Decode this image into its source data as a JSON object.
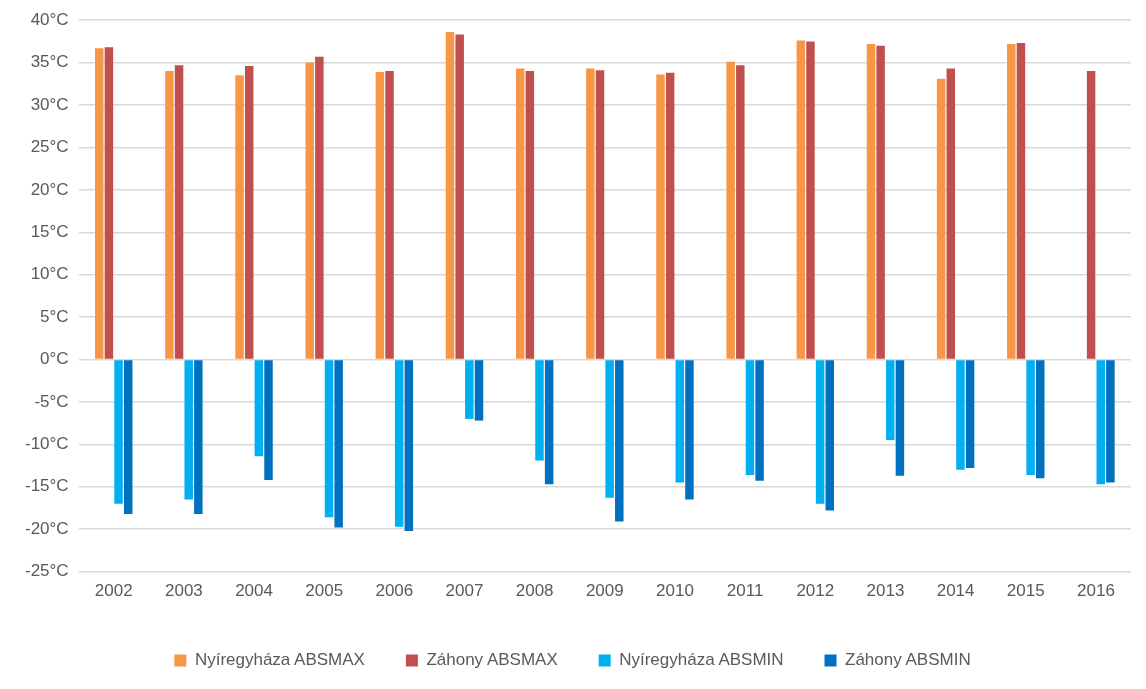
{
  "chart_data": {
    "type": "bar",
    "categories": [
      "2002",
      "2003",
      "2004",
      "2005",
      "2006",
      "2007",
      "2008",
      "2009",
      "2010",
      "2011",
      "2012",
      "2013",
      "2014",
      "2015",
      "2016"
    ],
    "series": [
      {
        "name": "Nyíregyháza ABSMAX",
        "color": "#f79646",
        "values": [
          36.7,
          34.0,
          33.5,
          35.0,
          33.9,
          38.6,
          34.3,
          34.3,
          33.6,
          35.1,
          37.6,
          37.2,
          33.1,
          37.2,
          null
        ]
      },
      {
        "name": "Záhony ABSMAX",
        "color": "#c0504d",
        "values": [
          36.8,
          34.7,
          34.6,
          35.7,
          34.0,
          38.3,
          34.0,
          34.1,
          33.8,
          34.7,
          37.5,
          37.0,
          34.3,
          37.3,
          34.0
        ]
      },
      {
        "name": "Nyíregyháza ABSMIN",
        "color": "#00b0f0",
        "values": [
          -17.0,
          -16.5,
          -11.4,
          -18.6,
          -19.7,
          -7.0,
          -11.9,
          -16.3,
          -14.5,
          -13.6,
          -17.0,
          -9.5,
          -13.0,
          -13.6,
          -14.7
        ]
      },
      {
        "name": "Záhony ABSMIN",
        "color": "#0070c0",
        "values": [
          -18.2,
          -18.2,
          -14.2,
          -19.8,
          -20.2,
          -7.2,
          -14.7,
          -19.1,
          -16.5,
          -14.3,
          -17.8,
          -13.7,
          -12.8,
          -14.0,
          -14.5
        ]
      }
    ],
    "ylim": [
      -25,
      40
    ],
    "yticks": [
      {
        "value": -25,
        "label": "-25°C"
      },
      {
        "value": -20,
        "label": "-20°C"
      },
      {
        "value": -15,
        "label": "-15°C"
      },
      {
        "value": -10,
        "label": "-10°C"
      },
      {
        "value": -5,
        "label": "-5°C"
      },
      {
        "value": 0,
        "label": "0°C"
      },
      {
        "value": 5,
        "label": "5°C"
      },
      {
        "value": 10,
        "label": "10°C"
      },
      {
        "value": 15,
        "label": "15°C"
      },
      {
        "value": 20,
        "label": "20°C"
      },
      {
        "value": 25,
        "label": "25°C"
      },
      {
        "value": 30,
        "label": "30°C"
      },
      {
        "value": 35,
        "label": "35°C"
      },
      {
        "value": 40,
        "label": "40°C"
      }
    ],
    "grid": "y",
    "legend": "bottom"
  }
}
